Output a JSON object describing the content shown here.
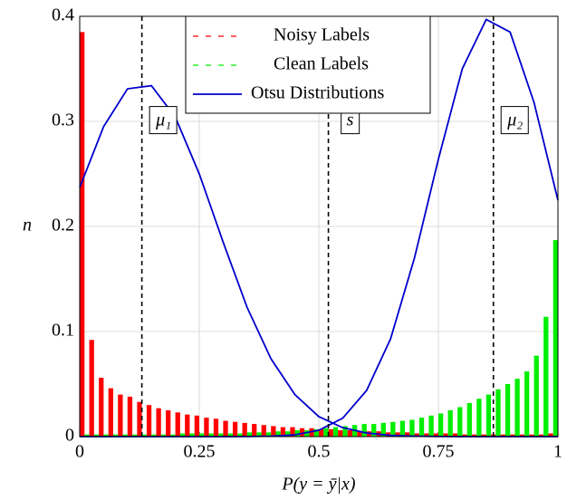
{
  "chart_data": {
    "type": "histogram",
    "xlabel": "P(y = ȳ|x)",
    "ylabel": "n",
    "xlim": [
      0,
      1
    ],
    "ylim": [
      0,
      0.4
    ],
    "xticks": [
      0,
      0.25,
      0.5,
      0.75,
      1
    ],
    "yticks": [
      0,
      0.1,
      0.2,
      0.3,
      0.4
    ],
    "grid": true,
    "legend": "upper center",
    "bins": [
      0,
      0.02,
      0.04,
      0.06,
      0.08,
      0.1,
      0.12,
      0.14,
      0.16,
      0.18,
      0.2,
      0.22,
      0.24,
      0.26,
      0.28,
      0.3,
      0.32,
      0.34,
      0.36,
      0.38,
      0.4,
      0.42,
      0.44,
      0.46,
      0.48,
      0.5,
      0.52,
      0.54,
      0.56,
      0.58,
      0.6,
      0.62,
      0.64,
      0.66,
      0.68,
      0.7,
      0.72,
      0.74,
      0.76,
      0.78,
      0.8,
      0.82,
      0.84,
      0.86,
      0.88,
      0.9,
      0.92,
      0.94,
      0.96,
      0.98,
      1
    ],
    "series": [
      {
        "name": "Noisy Labels",
        "color": "#ff0000",
        "values": [
          0.385,
          0.092,
          0.056,
          0.046,
          0.04,
          0.038,
          0.033,
          0.03,
          0.027,
          0.025,
          0.023,
          0.021,
          0.02,
          0.018,
          0.017,
          0.015,
          0.014,
          0.013,
          0.012,
          0.011,
          0.01,
          0.009,
          0.009,
          0.008,
          0.008,
          0.007,
          0.007,
          0.006,
          0.006,
          0.005,
          0.005,
          0.005,
          0.004,
          0.004,
          0.004,
          0.003,
          0.003,
          0.003,
          0.003,
          0.003,
          0.002,
          0.002,
          0.002,
          0.002,
          0.002,
          0.002,
          0.002,
          0.002,
          0.002,
          0.003
        ]
      },
      {
        "name": "Clean Labels",
        "color": "#00ee00",
        "values": [
          0.002,
          0.002,
          0.002,
          0.002,
          0.002,
          0.002,
          0.002,
          0.002,
          0.002,
          0.002,
          0.003,
          0.003,
          0.003,
          0.003,
          0.003,
          0.003,
          0.003,
          0.004,
          0.004,
          0.004,
          0.005,
          0.005,
          0.006,
          0.006,
          0.007,
          0.008,
          0.009,
          0.01,
          0.011,
          0.012,
          0.012,
          0.013,
          0.014,
          0.015,
          0.016,
          0.018,
          0.02,
          0.022,
          0.025,
          0.028,
          0.032,
          0.036,
          0.04,
          0.045,
          0.05,
          0.055,
          0.062,
          0.077,
          0.114,
          0.187
        ]
      }
    ],
    "otsu": {
      "name": "Otsu Distributions",
      "color": "#0000cc",
      "x": [
        0,
        0.05,
        0.1,
        0.15,
        0.2,
        0.25,
        0.3,
        0.35,
        0.4,
        0.45,
        0.5,
        0.55,
        0.6,
        0.65,
        0.7,
        0.75,
        0.8,
        0.85,
        0.9,
        0.95,
        1
      ],
      "curves": [
        [
          0.237,
          0.295,
          0.331,
          0.334,
          0.304,
          0.25,
          0.185,
          0.123,
          0.074,
          0.04,
          0.019,
          0.0085,
          0.0034,
          0.0012,
          0.0004,
          0.0001,
          0,
          0,
          0,
          0,
          0
        ],
        [
          0,
          0,
          0,
          0,
          0,
          0,
          0,
          0.0001,
          0.0004,
          0.0017,
          0.006,
          0.0175,
          0.044,
          0.093,
          0.17,
          0.264,
          0.35,
          0.397,
          0.385,
          0.318,
          0.225
        ]
      ]
    },
    "annotations": [
      {
        "x": 0.13,
        "y": 0.25,
        "label": "μ₁"
      },
      {
        "x": 0.52,
        "y": 0.25,
        "label": "s"
      },
      {
        "x": 0.865,
        "y": 0.25,
        "label": "μ₂"
      }
    ]
  }
}
